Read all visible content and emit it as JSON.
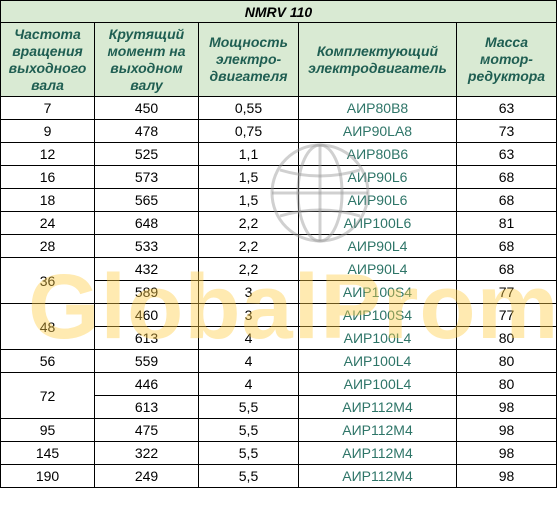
{
  "table": {
    "title": "NMRV 110",
    "headers": [
      "Частота вращения выходного вала",
      "Крутящий момент на выходном валу",
      "Мощность электро-двигателя",
      "Комплектующий электродвигатель",
      "Масса мотор-редуктора"
    ],
    "rows": [
      {
        "speed": "7",
        "torque": "450",
        "power": "0,55",
        "motor": "АИР80В8",
        "mass": "63"
      },
      {
        "speed": "9",
        "torque": "478",
        "power": "0,75",
        "motor": "АИР90LA8",
        "mass": "73"
      },
      {
        "speed": "12",
        "torque": "525",
        "power": "1,1",
        "motor": "АИР80В6",
        "mass": "63"
      },
      {
        "speed": "16",
        "torque": "573",
        "power": "1,5",
        "motor": "АИР90L6",
        "mass": "68"
      },
      {
        "speed": "18",
        "torque": "565",
        "power": "1,5",
        "motor": "АИР90L6",
        "mass": "68"
      },
      {
        "speed": "24",
        "torque": "648",
        "power": "2,2",
        "motor": "АИР100L6",
        "mass": "81"
      },
      {
        "speed": "28",
        "torque": "533",
        "power": "2,2",
        "motor": "АИР90L4",
        "mass": "68"
      },
      {
        "speed": "36",
        "torque": "432",
        "power": "2,2",
        "motor": "АИР90L4",
        "mass": "68"
      },
      {
        "speed": "",
        "torque": "589",
        "power": "3",
        "motor": "АИР100S4",
        "mass": "77"
      },
      {
        "speed": "48",
        "torque": "460",
        "power": "3",
        "motor": "АИР100S4",
        "mass": "77"
      },
      {
        "speed": "",
        "torque": "613",
        "power": "4",
        "motor": "АИР100L4",
        "mass": "80"
      },
      {
        "speed": "56",
        "torque": "559",
        "power": "4",
        "motor": "АИР100L4",
        "mass": "80"
      },
      {
        "speed": "72",
        "torque": "446",
        "power": "4",
        "motor": "АИР100L4",
        "mass": "80"
      },
      {
        "speed": "",
        "torque": "613",
        "power": "5,5",
        "motor": "АИР112М4",
        "mass": "98"
      },
      {
        "speed": "95",
        "torque": "475",
        "power": "5,5",
        "motor": "АИР112М4",
        "mass": "98"
      },
      {
        "speed": "145",
        "torque": "322",
        "power": "5,5",
        "motor": "АИР112М4",
        "mass": "98"
      },
      {
        "speed": "190",
        "torque": "249",
        "power": "5,5",
        "motor": "АИР112М4",
        "mass": "98"
      }
    ]
  },
  "watermark": {
    "text": "GlobalProm"
  },
  "colors": {
    "header_bg": "#d9ead3",
    "header_text": "#1f5e52",
    "motor_text": "#2e7568",
    "watermark": "#ffcd46"
  }
}
